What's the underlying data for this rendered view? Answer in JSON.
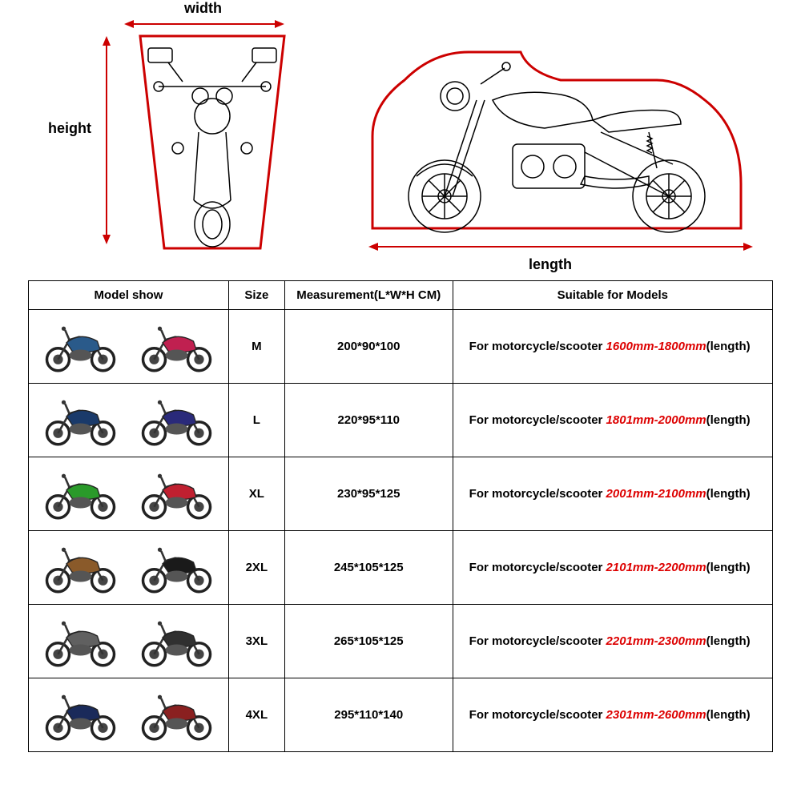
{
  "labels": {
    "width": "width",
    "height": "height",
    "length": "length"
  },
  "colors": {
    "arrow": "#cc0000",
    "outline": "#cc0000",
    "moto": "#000000",
    "range_text": "#dd0000",
    "border": "#000000",
    "bg": "#ffffff"
  },
  "table": {
    "headers": {
      "model": "Model show",
      "size": "Size",
      "measurement": "Measurement(L*W*H CM)",
      "suitable": "Suitable for Models"
    },
    "suitable_prefix": "For motorcycle/scooter ",
    "suitable_suffix": "(length)",
    "rows": [
      {
        "size": "M",
        "measurement": "200*90*100",
        "range": "1600mm-1800mm",
        "icon_colors": [
          "#2a5a8a",
          "#c02050"
        ]
      },
      {
        "size": "L",
        "measurement": "220*95*110",
        "range": "1801mm-2000mm",
        "icon_colors": [
          "#1a3a6a",
          "#2a2a7a"
        ]
      },
      {
        "size": "XL",
        "measurement": "230*95*125",
        "range": "2001mm-2100mm",
        "icon_colors": [
          "#2a9a2a",
          "#c02030"
        ]
      },
      {
        "size": "2XL",
        "measurement": "245*105*125",
        "range": "2101mm-2200mm",
        "icon_colors": [
          "#8a5a2a",
          "#1a1a1a"
        ]
      },
      {
        "size": "3XL",
        "measurement": "265*105*125",
        "range": "2201mm-2300mm",
        "icon_colors": [
          "#606060",
          "#303030"
        ]
      },
      {
        "size": "4XL",
        "measurement": "295*110*140",
        "range": "2301mm-2600mm",
        "icon_colors": [
          "#1a2a5a",
          "#8a2020"
        ]
      }
    ]
  }
}
